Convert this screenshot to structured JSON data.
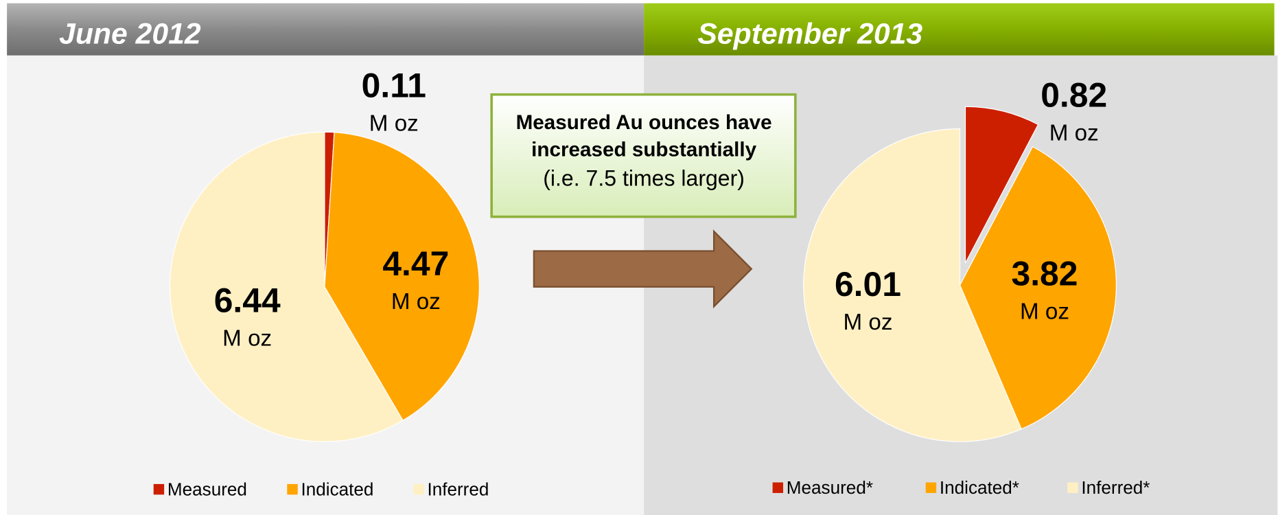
{
  "chart_data": [
    {
      "type": "pie",
      "title": "June 2012",
      "unit": "M oz",
      "categories": [
        "Measured",
        "Indicated",
        "Inferred"
      ],
      "values": [
        0.11,
        4.47,
        6.44
      ],
      "colors": [
        "#cc1f00",
        "#ffa500",
        "#fff0c4"
      ]
    },
    {
      "type": "pie",
      "title": "September 2013",
      "unit": "M oz",
      "categories": [
        "Measured*",
        "Indicated*",
        "Inferred*"
      ],
      "values": [
        0.82,
        3.82,
        6.01
      ],
      "colors": [
        "#cc1f00",
        "#ffa500",
        "#fff0c4"
      ]
    }
  ],
  "annotation": {
    "lines": [
      "Measured Au ounces have",
      "increased  substantially",
      "(i.e.  7.5 times larger)"
    ]
  }
}
